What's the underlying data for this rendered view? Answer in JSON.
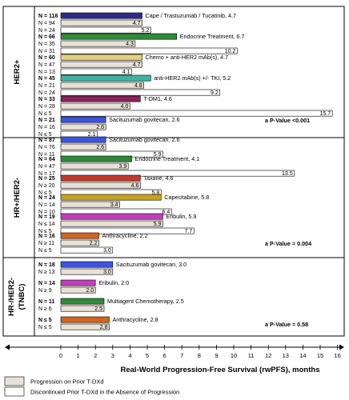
{
  "chart_data": {
    "type": "bar",
    "orientation": "horizontal",
    "xlabel": "Real-World Progression-Free Survival (rwPFS), months",
    "xlim": [
      0,
      16
    ],
    "xticks": [
      0,
      1,
      2,
      3,
      4,
      5,
      6,
      7,
      8,
      9,
      10,
      11,
      12,
      13,
      14,
      15,
      16
    ],
    "legend": [
      {
        "label": "Progression on Prior T-DXd",
        "color": "#e8e2d6"
      },
      {
        "label": "Discontinued Prior T-DXd in the Absence of Progression",
        "color": "#ffffff"
      }
    ],
    "groups": [
      {
        "name": "HER2+",
        "p_value": "P-Value <0.001",
        "treatments": [
          {
            "label": "Cape / Trastuzumab / Tucatinib, 4.7",
            "color": "#2e2a8c",
            "n_all": "N = 118",
            "value_all": 4.7,
            "n_prog": "N = 94",
            "value_prog": 4.7,
            "prog_label": "4.7",
            "n_disc": "N = 24",
            "value_disc": 5.2,
            "disc_label": "5.2"
          },
          {
            "label": "Endocrine Treatment, 6.7",
            "color": "#2f8a3a",
            "n_all": "N = 66",
            "value_all": 6.7,
            "n_prog": "N = 35",
            "value_prog": 4.3,
            "prog_label": "4.3",
            "n_disc": "N = 31",
            "value_disc": 10.2,
            "disc_label": "10.2"
          },
          {
            "label": "Chemo + anti-HER2 mAb(s), 4.7",
            "color": "#e3d27a",
            "n_all": "N = 60",
            "value_all": 4.7,
            "n_prog": "N = 47",
            "value_prog": 4.7,
            "prog_label": "4.7",
            "n_disc": "N = 13",
            "value_disc": 4.1,
            "disc_label": "4.1"
          },
          {
            "label": "anti-HER2 mAb(s) +/- TKI, 5.2",
            "color": "#3fb3a2",
            "n_all": "N = 45",
            "value_all": 5.2,
            "n_prog": "N = 21",
            "value_prog": 4.8,
            "prog_label": "4.8",
            "n_disc": "N = 24",
            "value_disc": 9.2,
            "disc_label": "9.2"
          },
          {
            "label": "T-DM1, 4.6",
            "color": "#8a2357",
            "n_all": "N = 33",
            "value_all": 4.6,
            "n_prog": "N = 28",
            "value_prog": 4.0,
            "prog_label": "4.0",
            "n_disc": "N ≤ 5",
            "value_disc": 15.7,
            "disc_label": "15.7"
          },
          {
            "label": "Sacituzumab govitecan, 2.6",
            "color": "#3c54e0",
            "n_all": "N = 21",
            "value_all": 2.6,
            "n_prog": "N = 16",
            "value_prog": 2.6,
            "prog_label": "2.6",
            "n_disc": "N ≤ 5",
            "value_disc": 2.1,
            "disc_label": "2.1"
          }
        ]
      },
      {
        "name": "HR+/HER2-",
        "p_value": "P-Value = 0.004",
        "treatments": [
          {
            "label": "Sacituzumab govitecan, 2.6",
            "color": "#3c54e0",
            "n_all": "N = 87",
            "value_all": 2.6,
            "n_prog": "N = 76",
            "value_prog": 2.6,
            "prog_label": "2.6",
            "n_disc": "N = 11",
            "value_disc": 5.9,
            "disc_label": "5.9"
          },
          {
            "label": "Endocrine Treatment, 4.1",
            "color": "#2f8a3a",
            "n_all": "N = 64",
            "value_all": 4.1,
            "n_prog": "N = 47",
            "value_prog": 3.9,
            "prog_label": "3.9",
            "n_disc": "N = 17",
            "value_disc": 13.5,
            "disc_label": "13.5"
          },
          {
            "label": "Taxane, 4.6",
            "color": "#c0392b",
            "n_all": "N = 25",
            "value_all": 4.6,
            "n_prog": "N ≥ 20",
            "value_prog": 4.6,
            "prog_label": "4.6",
            "n_disc": "N ≤ 5",
            "value_disc": 5.8,
            "disc_label": "5.8"
          },
          {
            "label": "Capecitabine, 5.8",
            "color": "#c9a21c",
            "n_all": "N = 24",
            "value_all": 5.8,
            "n_prog": "N = 14",
            "value_prog": 3.4,
            "prog_label": "3.4",
            "n_disc": "N = 10",
            "value_disc": 6.4,
            "disc_label": "6.4"
          },
          {
            "label": "Eribulin, 5.9",
            "color": "#c040b8",
            "n_all": "N = 19",
            "value_all": 5.9,
            "n_prog": "N ≤ 14",
            "value_prog": 5.9,
            "prog_label": "5.9",
            "n_disc": "N ≤ 5",
            "value_disc": 7.7,
            "disc_label": "7.7"
          },
          {
            "label": "Anthracycline, 2.2",
            "color": "#d4641c",
            "n_all": "N = 16",
            "value_all": 2.2,
            "n_prog": "N ≥ 11",
            "value_prog": 2.2,
            "prog_label": "2.2",
            "n_disc": "N ≤ 5",
            "value_disc": 3.0,
            "disc_label": "3.0"
          }
        ]
      },
      {
        "name": "HR-/HER2-",
        "name_line2": "(TNBC)",
        "p_value": "P-Value = 0.58",
        "treatments": [
          {
            "label": "Sacituzumab govitecan, 3.0",
            "color": "#3c54e0",
            "n_all": "N = 18",
            "value_all": 3.0,
            "n_prog": "N ≥ 13",
            "value_prog": 3.0,
            "prog_label": "3.0"
          },
          {
            "label": "Eribulin, 2.0",
            "color": "#c040b8",
            "n_all": "N = 14",
            "value_all": 2.0,
            "n_prog": "N ≥ 9",
            "value_prog": 2.0,
            "prog_label": "2.0"
          },
          {
            "label": "Multiagent Chemotherapy, 2.5",
            "color": "#2f8a3a",
            "n_all": "N = 11",
            "value_all": 2.5,
            "n_prog": "N ≥ 6",
            "value_prog": 2.5,
            "prog_label": "2.5"
          },
          {
            "label": "Anthracycline, 2.8",
            "color": "#d4641c",
            "n_all": "N ≤ 5",
            "value_all": 2.8,
            "n_prog": "N ≤ 5",
            "value_prog": 2.8,
            "prog_label": "2.8"
          }
        ]
      }
    ]
  }
}
